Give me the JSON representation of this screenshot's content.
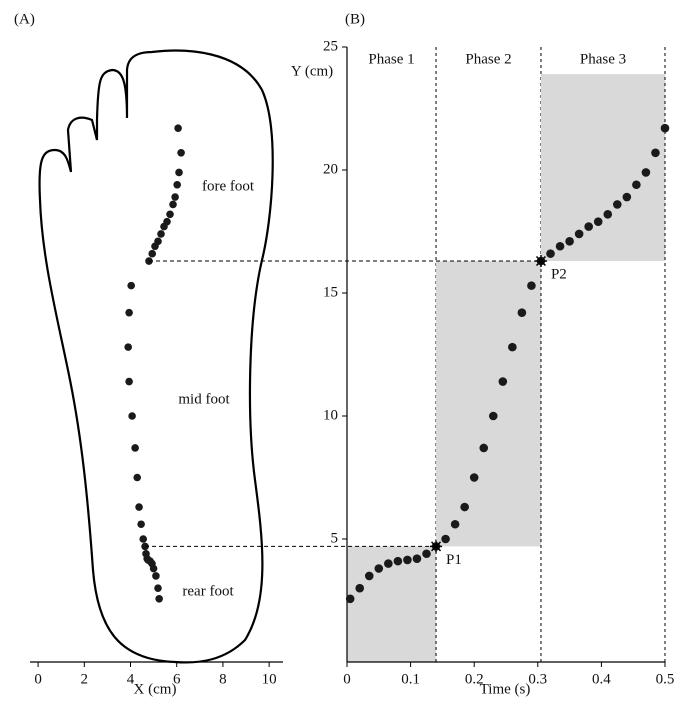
{
  "chart_data": [
    {
      "type": "scatter",
      "panel_label": "(A)",
      "xlabel": "X (cm)",
      "x": [
        5.24,
        5.19,
        5.1,
        5.0,
        4.93,
        4.85,
        4.76,
        4.72,
        4.67,
        4.63,
        4.55,
        4.46,
        4.37,
        4.29,
        4.2,
        4.07,
        3.94,
        3.9,
        3.94,
        4.03,
        4.8,
        4.94,
        5.06,
        5.19,
        5.32,
        5.45,
        5.58,
        5.71,
        5.84,
        5.93,
        6.02,
        6.1,
        6.19,
        6.06
      ],
      "values": [
        2.57,
        3.0,
        3.5,
        3.8,
        4.0,
        4.1,
        4.15,
        4.2,
        4.4,
        4.7,
        5.0,
        5.6,
        6.3,
        7.5,
        8.7,
        10.0,
        11.4,
        12.8,
        14.2,
        15.3,
        16.3,
        16.6,
        16.9,
        17.1,
        17.4,
        17.7,
        17.9,
        18.2,
        18.6,
        18.9,
        19.4,
        19.9,
        20.7,
        21.7
      ],
      "xlim": [
        -0.35,
        10.6
      ],
      "xticks": [
        0,
        2,
        4,
        6,
        8,
        10
      ],
      "ylim": [
        0,
        25
      ],
      "annotations": [
        "fore foot",
        "mid foot",
        "rear foot"
      ],
      "color": "#1a1a1a"
    },
    {
      "type": "scatter",
      "panel_label": "(B)",
      "xlabel": "Time (s)",
      "ylabel": "Y (cm)",
      "x": [
        0.005,
        0.02,
        0.035,
        0.05,
        0.065,
        0.08,
        0.095,
        0.11,
        0.125,
        0.14,
        0.155,
        0.17,
        0.185,
        0.2,
        0.215,
        0.23,
        0.245,
        0.26,
        0.275,
        0.29,
        0.305,
        0.32,
        0.335,
        0.35,
        0.365,
        0.38,
        0.395,
        0.41,
        0.425,
        0.44,
        0.455,
        0.47,
        0.485,
        0.5
      ],
      "values": [
        2.57,
        3.0,
        3.5,
        3.8,
        4.0,
        4.1,
        4.15,
        4.2,
        4.4,
        4.7,
        5.0,
        5.6,
        6.3,
        7.5,
        8.7,
        10.0,
        11.4,
        12.8,
        14.2,
        15.3,
        16.3,
        16.6,
        16.9,
        17.1,
        17.4,
        17.7,
        17.9,
        18.2,
        18.6,
        18.9,
        19.4,
        19.9,
        20.7,
        21.7
      ],
      "xlim": [
        0,
        0.5
      ],
      "ylim": [
        0,
        25
      ],
      "xticks": [
        0,
        0.1,
        0.2,
        0.3,
        0.4,
        0.5
      ],
      "yticks": [
        5,
        10,
        15,
        20,
        25
      ],
      "regions": [
        {
          "label": "Phase 1",
          "x": [
            0,
            0.14
          ],
          "y": [
            0,
            4.7
          ]
        },
        {
          "label": "Phase 2",
          "x": [
            0.14,
            0.305
          ],
          "y": [
            4.7,
            16.3
          ]
        },
        {
          "label": "Phase 3",
          "x": [
            0.305,
            0.5
          ],
          "y": [
            16.3,
            23.9
          ]
        }
      ],
      "region_color": "#d9d9d9",
      "points": [
        {
          "label": "P1",
          "x": 0.14,
          "y": 4.7
        },
        {
          "label": "P2",
          "x": 0.305,
          "y": 16.3
        }
      ],
      "color": "#1a1a1a"
    }
  ]
}
